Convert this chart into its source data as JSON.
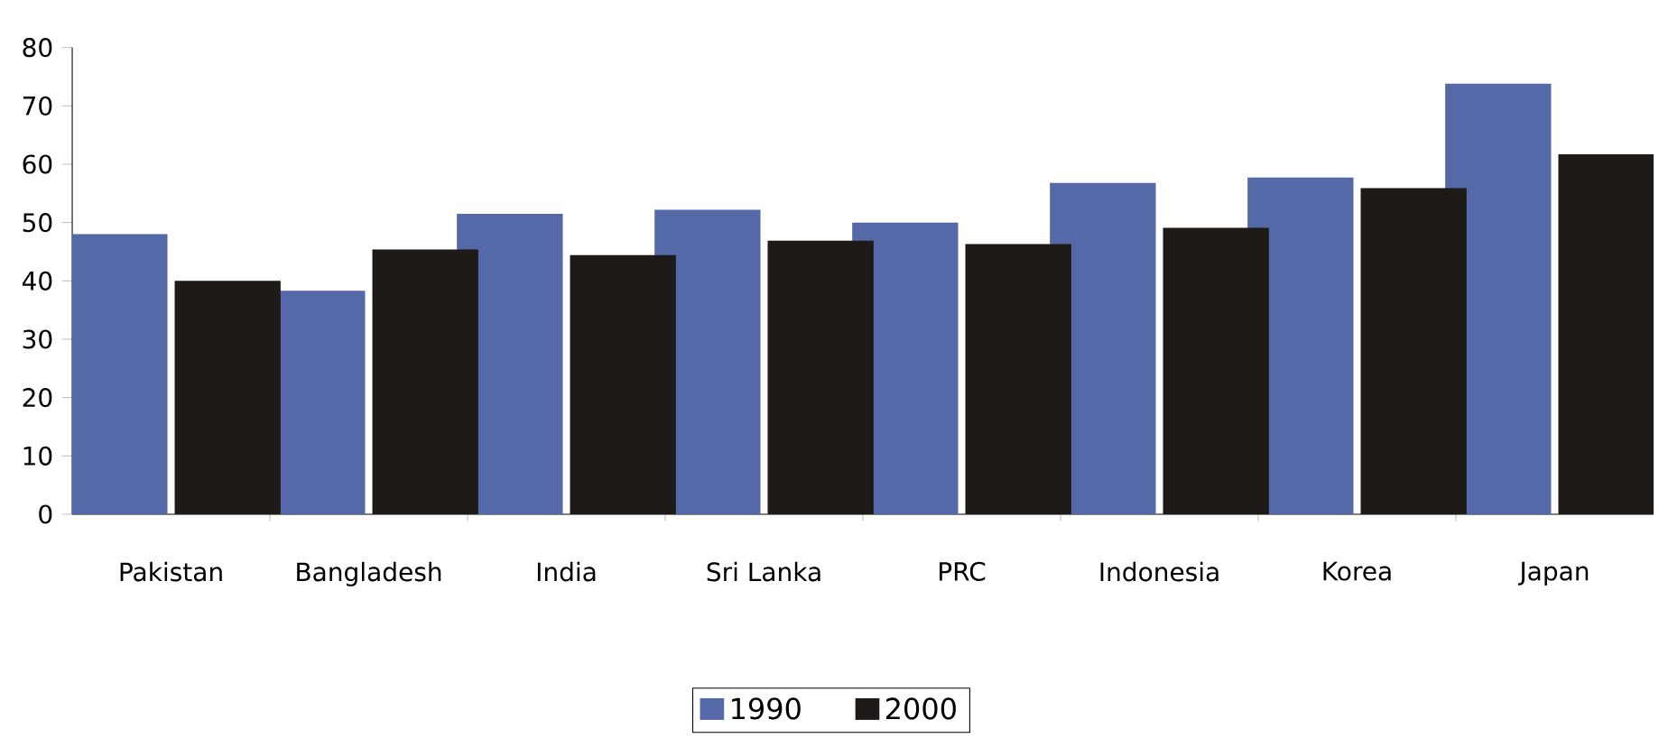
{
  "chart_data": {
    "type": "bar",
    "categories": [
      "Pakistan",
      "Bangladesh",
      "India",
      "Sri Lanka",
      "PRC",
      "Indonesia",
      "Korea",
      "Japan"
    ],
    "series": [
      {
        "name": "1990",
        "color": "#5568a8",
        "values": [
          48,
          38.3,
          51.5,
          52.2,
          50,
          56.8,
          57.7,
          73.8
        ]
      },
      {
        "name": "2000",
        "color": "#1e1a17",
        "values": [
          40,
          45.4,
          44.4,
          46.9,
          46.3,
          49.1,
          55.9,
          61.7
        ]
      }
    ],
    "ylim": [
      0,
      80
    ],
    "yticks": [
      0,
      10,
      20,
      30,
      40,
      50,
      60,
      70,
      80
    ],
    "grid": false,
    "legend": "bottom"
  }
}
